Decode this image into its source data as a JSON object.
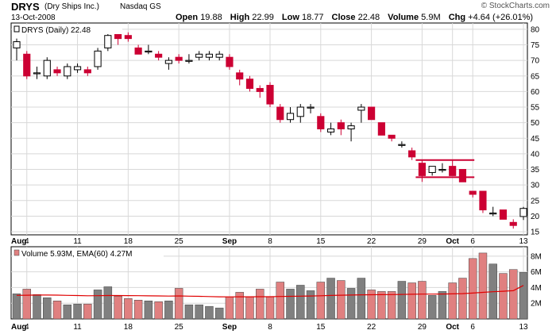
{
  "header": {
    "ticker": "DRYS",
    "company": "(Dry Ships Inc.)",
    "exchange": "Nasdaq GS",
    "date": "13-Oct-2008",
    "credit": "© StockCharts.com",
    "open_label": "Open",
    "open": "19.88",
    "high_label": "High",
    "high": "22.99",
    "low_label": "Low",
    "low": "18.77",
    "close_label": "Close",
    "close": "22.48",
    "volume_label": "Volume",
    "volume": "5.9M",
    "chg_label": "Chg",
    "chg": "+4.64 (+26.01%)"
  },
  "colors": {
    "up": "#ffffff",
    "down": "#cc0033",
    "vol_up": "#808080",
    "vol_down": "#e08080",
    "ema": "#e00000",
    "grid": "#d8d8d8",
    "support": "#cc0033"
  },
  "chart_data": [
    {
      "type": "candlestick",
      "legend": "DRYS (Daily) 22.48",
      "y_ticks": [
        15,
        20,
        25,
        30,
        35,
        40,
        45,
        50,
        55,
        60,
        65,
        70,
        75,
        80
      ],
      "ylim": [
        14,
        82
      ],
      "x_labels": [
        {
          "label": "Aug",
          "index": 0,
          "bold": true
        },
        {
          "label": "4",
          "index": 1,
          "bold": false
        },
        {
          "label": "11",
          "index": 6,
          "bold": false
        },
        {
          "label": "18",
          "index": 11,
          "bold": false
        },
        {
          "label": "25",
          "index": 16,
          "bold": false
        },
        {
          "label": "Sep",
          "index": 21,
          "bold": true
        },
        {
          "label": "8",
          "index": 25,
          "bold": false
        },
        {
          "label": "15",
          "index": 30,
          "bold": false
        },
        {
          "label": "22",
          "index": 35,
          "bold": false
        },
        {
          "label": "29",
          "index": 40,
          "bold": false
        },
        {
          "label": "Oct",
          "index": 43,
          "bold": true
        },
        {
          "label": "6",
          "index": 45,
          "bold": false
        },
        {
          "label": "13",
          "index": 50,
          "bold": false
        }
      ],
      "candles": [
        {
          "o": 74,
          "h": 77,
          "l": 70,
          "c": 76
        },
        {
          "o": 72,
          "h": 73,
          "l": 64,
          "c": 65
        },
        {
          "o": 66,
          "h": 68,
          "l": 64,
          "c": 66
        },
        {
          "o": 65,
          "h": 71,
          "l": 64,
          "c": 70
        },
        {
          "o": 67,
          "h": 68,
          "l": 65,
          "c": 66
        },
        {
          "o": 65,
          "h": 69,
          "l": 64,
          "c": 68
        },
        {
          "o": 67,
          "h": 69,
          "l": 66,
          "c": 68
        },
        {
          "o": 67,
          "h": 68,
          "l": 65,
          "c": 66
        },
        {
          "o": 68,
          "h": 74,
          "l": 67,
          "c": 73
        },
        {
          "o": 74,
          "h": 80,
          "l": 73,
          "c": 78
        },
        {
          "o": 80,
          "h": 81,
          "l": 75,
          "c": 77
        },
        {
          "o": 78,
          "h": 79,
          "l": 76,
          "c": 77
        },
        {
          "o": 74,
          "h": 75,
          "l": 72,
          "c": 72
        },
        {
          "o": 73,
          "h": 75,
          "l": 72,
          "c": 73
        },
        {
          "o": 72,
          "h": 73,
          "l": 70,
          "c": 71
        },
        {
          "o": 69,
          "h": 71,
          "l": 67,
          "c": 70
        },
        {
          "o": 71,
          "h": 72,
          "l": 69,
          "c": 70
        },
        {
          "o": 70,
          "h": 72,
          "l": 69,
          "c": 70
        },
        {
          "o": 71,
          "h": 73,
          "l": 70,
          "c": 72
        },
        {
          "o": 71,
          "h": 73,
          "l": 70,
          "c": 72
        },
        {
          "o": 71,
          "h": 73,
          "l": 70,
          "c": 72
        },
        {
          "o": 71,
          "h": 72,
          "l": 67,
          "c": 68
        },
        {
          "o": 66,
          "h": 67,
          "l": 62,
          "c": 64
        },
        {
          "o": 64,
          "h": 65,
          "l": 60,
          "c": 61
        },
        {
          "o": 61,
          "h": 62,
          "l": 58,
          "c": 60
        },
        {
          "o": 62,
          "h": 63,
          "l": 55,
          "c": 56
        },
        {
          "o": 55,
          "h": 56,
          "l": 50,
          "c": 51
        },
        {
          "o": 51,
          "h": 55,
          "l": 50,
          "c": 53
        },
        {
          "o": 52,
          "h": 56,
          "l": 50,
          "c": 55
        },
        {
          "o": 55,
          "h": 56,
          "l": 53,
          "c": 55
        },
        {
          "o": 52,
          "h": 53,
          "l": 47,
          "c": 48
        },
        {
          "o": 47,
          "h": 50,
          "l": 46,
          "c": 48
        },
        {
          "o": 50,
          "h": 51,
          "l": 46,
          "c": 48
        },
        {
          "o": 48,
          "h": 50,
          "l": 44,
          "c": 49
        },
        {
          "o": 54,
          "h": 56,
          "l": 50,
          "c": 55
        },
        {
          "o": 55,
          "h": 55,
          "l": 51,
          "c": 51
        },
        {
          "o": 50,
          "h": 50,
          "l": 46,
          "c": 46
        },
        {
          "o": 46,
          "h": 46,
          "l": 44,
          "c": 45
        },
        {
          "o": 43,
          "h": 44,
          "l": 42,
          "c": 43
        },
        {
          "o": 41,
          "h": 42,
          "l": 38,
          "c": 39
        },
        {
          "o": 37,
          "h": 38,
          "l": 31,
          "c": 33
        },
        {
          "o": 34,
          "h": 36,
          "l": 33,
          "c": 36
        },
        {
          "o": 35,
          "h": 37,
          "l": 34,
          "c": 35
        },
        {
          "o": 36,
          "h": 38,
          "l": 33,
          "c": 33
        },
        {
          "o": 35,
          "h": 35,
          "l": 31,
          "c": 31
        },
        {
          "o": 28,
          "h": 28,
          "l": 26,
          "c": 27
        },
        {
          "o": 28,
          "h": 28,
          "l": 21,
          "c": 22
        },
        {
          "o": 21,
          "h": 23,
          "l": 20,
          "c": 21
        },
        {
          "o": 22,
          "h": 22,
          "l": 19,
          "c": 19
        },
        {
          "o": 18,
          "h": 19,
          "l": 16,
          "c": 17
        },
        {
          "o": 19.88,
          "h": 22.99,
          "l": 18.77,
          "c": 22.48
        }
      ],
      "support_lines": [
        {
          "y": 38,
          "start": 40,
          "end": 45
        },
        {
          "y": 32.5,
          "start": 40,
          "end": 45
        }
      ]
    },
    {
      "type": "bar",
      "legend": "Volume 5.93M, EMA(60) 4.27M",
      "y_ticks": [
        {
          "v": 2,
          "label": "2M"
        },
        {
          "v": 4,
          "label": "4M"
        },
        {
          "v": 6,
          "label": "6M"
        },
        {
          "v": 8,
          "label": "8M"
        }
      ],
      "ylim": [
        0,
        9.2
      ],
      "volumes": [
        3.2,
        3.8,
        3.1,
        2.7,
        2.3,
        1.8,
        1.9,
        1.9,
        3.7,
        4.1,
        2.9,
        2.6,
        2.4,
        2.3,
        2.2,
        2.3,
        3.9,
        1.8,
        1.8,
        1.6,
        1.4,
        2.8,
        3.4,
        2.8,
        3.8,
        2.8,
        4.7,
        3.8,
        4.3,
        3.6,
        4.7,
        5.2,
        4.9,
        3.9,
        5.2,
        3.7,
        3.5,
        3.5,
        4.8,
        4.6,
        4.8,
        3.0,
        3.5,
        4.6,
        5.2,
        7.7,
        8.4,
        7.0,
        5.8,
        6.3,
        5.93
      ],
      "ema": [
        3.0,
        3.02,
        3.04,
        3.04,
        3.03,
        3.0,
        2.98,
        2.95,
        2.96,
        2.98,
        2.98,
        2.97,
        2.96,
        2.94,
        2.93,
        2.91,
        2.93,
        2.9,
        2.88,
        2.85,
        2.82,
        2.81,
        2.82,
        2.82,
        2.83,
        2.83,
        2.86,
        2.88,
        2.9,
        2.92,
        2.95,
        2.99,
        3.02,
        3.04,
        3.07,
        3.08,
        3.09,
        3.1,
        3.12,
        3.14,
        3.16,
        3.16,
        3.17,
        3.19,
        3.22,
        3.3,
        3.39,
        3.47,
        3.53,
        3.6,
        4.27
      ]
    }
  ]
}
